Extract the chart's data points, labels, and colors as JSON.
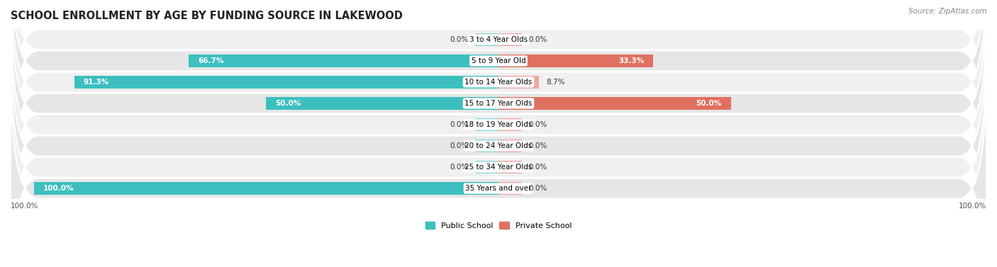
{
  "title": "SCHOOL ENROLLMENT BY AGE BY FUNDING SOURCE IN LAKEWOOD",
  "source": "Source: ZipAtlas.com",
  "categories": [
    "3 to 4 Year Olds",
    "5 to 9 Year Old",
    "10 to 14 Year Olds",
    "15 to 17 Year Olds",
    "18 to 19 Year Olds",
    "20 to 24 Year Olds",
    "25 to 34 Year Olds",
    "35 Years and over"
  ],
  "public_values": [
    0.0,
    66.7,
    91.3,
    50.0,
    0.0,
    0.0,
    0.0,
    100.0
  ],
  "private_values": [
    0.0,
    33.3,
    8.7,
    50.0,
    0.0,
    0.0,
    0.0,
    0.0
  ],
  "public_color": "#3DBFBF",
  "public_color_weak": "#8DD8D8",
  "private_color_strong": "#E07060",
  "private_color_weak": "#F0A8A0",
  "row_color_odd": "#F0F0F0",
  "row_color_even": "#E6E6E6",
  "xlim_abs": 105,
  "stub_size": 5.0,
  "bar_height": 0.62,
  "title_fontsize": 10.5,
  "label_fontsize": 7.5,
  "cat_fontsize": 7.5,
  "legend_fontsize": 8
}
